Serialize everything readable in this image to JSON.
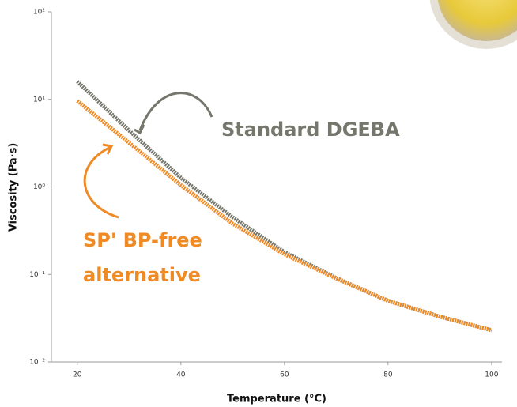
{
  "chart_data": {
    "type": "line",
    "xlabel": "Temperature (°C)",
    "ylabel": "Viscosity (Pa·s)",
    "x": [
      20,
      30,
      40,
      50,
      60,
      70,
      80,
      90,
      100
    ],
    "series": [
      {
        "name": "Standard DGEBA",
        "color": "#75766c",
        "values": [
          16,
          4.4,
          1.27,
          0.45,
          0.18,
          0.091,
          0.05,
          0.033,
          0.023
        ]
      },
      {
        "name": "SP' BP-free alternative",
        "color": "#f08a24",
        "values": [
          9.6,
          3.2,
          1.05,
          0.38,
          0.17,
          0.09,
          0.05,
          0.033,
          0.023
        ]
      }
    ],
    "xlim": [
      15,
      102
    ],
    "xticks": [
      20,
      40,
      60,
      80,
      100
    ],
    "ylim": [
      0.01,
      100
    ],
    "log_y": true,
    "yticks": [
      {
        "value": 100,
        "label": "10²"
      },
      {
        "value": 10,
        "label": "10¹"
      },
      {
        "value": 1,
        "label": "10⁰"
      },
      {
        "value": 0.1,
        "label": "10⁻¹"
      },
      {
        "value": 0.01,
        "label": "10⁻²"
      }
    ]
  }
}
